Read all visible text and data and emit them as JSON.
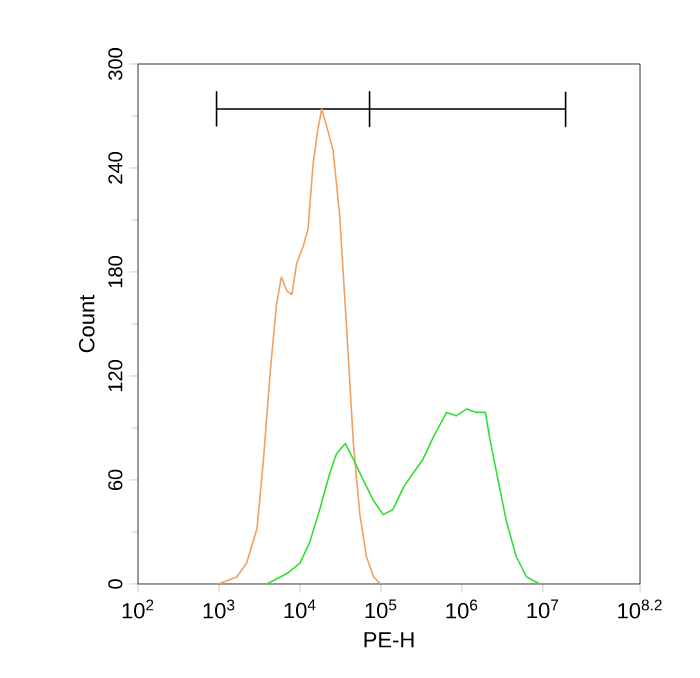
{
  "chart_data": {
    "type": "line",
    "xlabel": "PE-H",
    "ylabel": "Count",
    "log": "x",
    "grid": false,
    "marker": "none",
    "line_style": "solid",
    "xlim": [
      100,
      158489319
    ],
    "ylim": [
      0,
      300
    ],
    "xticks": [
      {
        "value": 100,
        "label": "10$^{2}$"
      },
      {
        "value": 1000,
        "label": "10$^{3}$"
      },
      {
        "value": 10000,
        "label": "10$^{4}$"
      },
      {
        "value": 100000,
        "label": "10$^{5}$"
      },
      {
        "value": 1000000,
        "label": "10$^{6}$"
      },
      {
        "value": 10000000,
        "label": "10$^{7}$"
      },
      {
        "value": 158489319,
        "label": "10$^{8.2}$"
      }
    ],
    "yticks": [
      0,
      60,
      120,
      180,
      240,
      300
    ],
    "series": [
      {
        "color": "#000000",
        "x": [
          933,
          933,
          933,
          72400,
          72400,
          72400,
          72400,
          19100000,
          19100000,
          19100000
        ],
        "values": [
          264,
          284,
          274,
          274,
          264,
          284,
          274,
          274,
          264,
          284
        ]
      },
      {
        "color": "#f0a060",
        "x": [
          977,
          1660,
          2190,
          2950,
          3550,
          4270,
          5130,
          5890,
          6920,
          7940,
          9120,
          11000,
          12600,
          14500,
          16600,
          18600,
          21400,
          25700,
          30900,
          38000,
          45700,
          55000,
          66100,
          81300,
          100000
        ],
        "values": [
          0,
          4,
          12,
          32,
          72,
          121,
          161,
          177,
          169,
          167,
          185,
          195,
          205,
          242,
          262,
          274,
          264,
          250,
          213,
          145,
          81,
          40,
          16,
          4,
          0
        ]
      },
      {
        "color": "#33dd33",
        "x": [
          3890,
          6920,
          10000,
          13200,
          17800,
          23400,
          28200,
          36300,
          45700,
          60300,
          81300,
          107000,
          141000,
          191000,
          251000,
          331000,
          447000,
          646000,
          851000,
          1150000,
          1510000,
          1950000,
          2190000,
          2690000,
          3550000,
          4680000,
          6310000,
          9120000
        ],
        "values": [
          0,
          6,
          12,
          24,
          44,
          64,
          75,
          81,
          72,
          60,
          48,
          40,
          43,
          56,
          64,
          72,
          85,
          99,
          97,
          101,
          99,
          99,
          85,
          64,
          36,
          16,
          4,
          0
        ]
      }
    ]
  }
}
